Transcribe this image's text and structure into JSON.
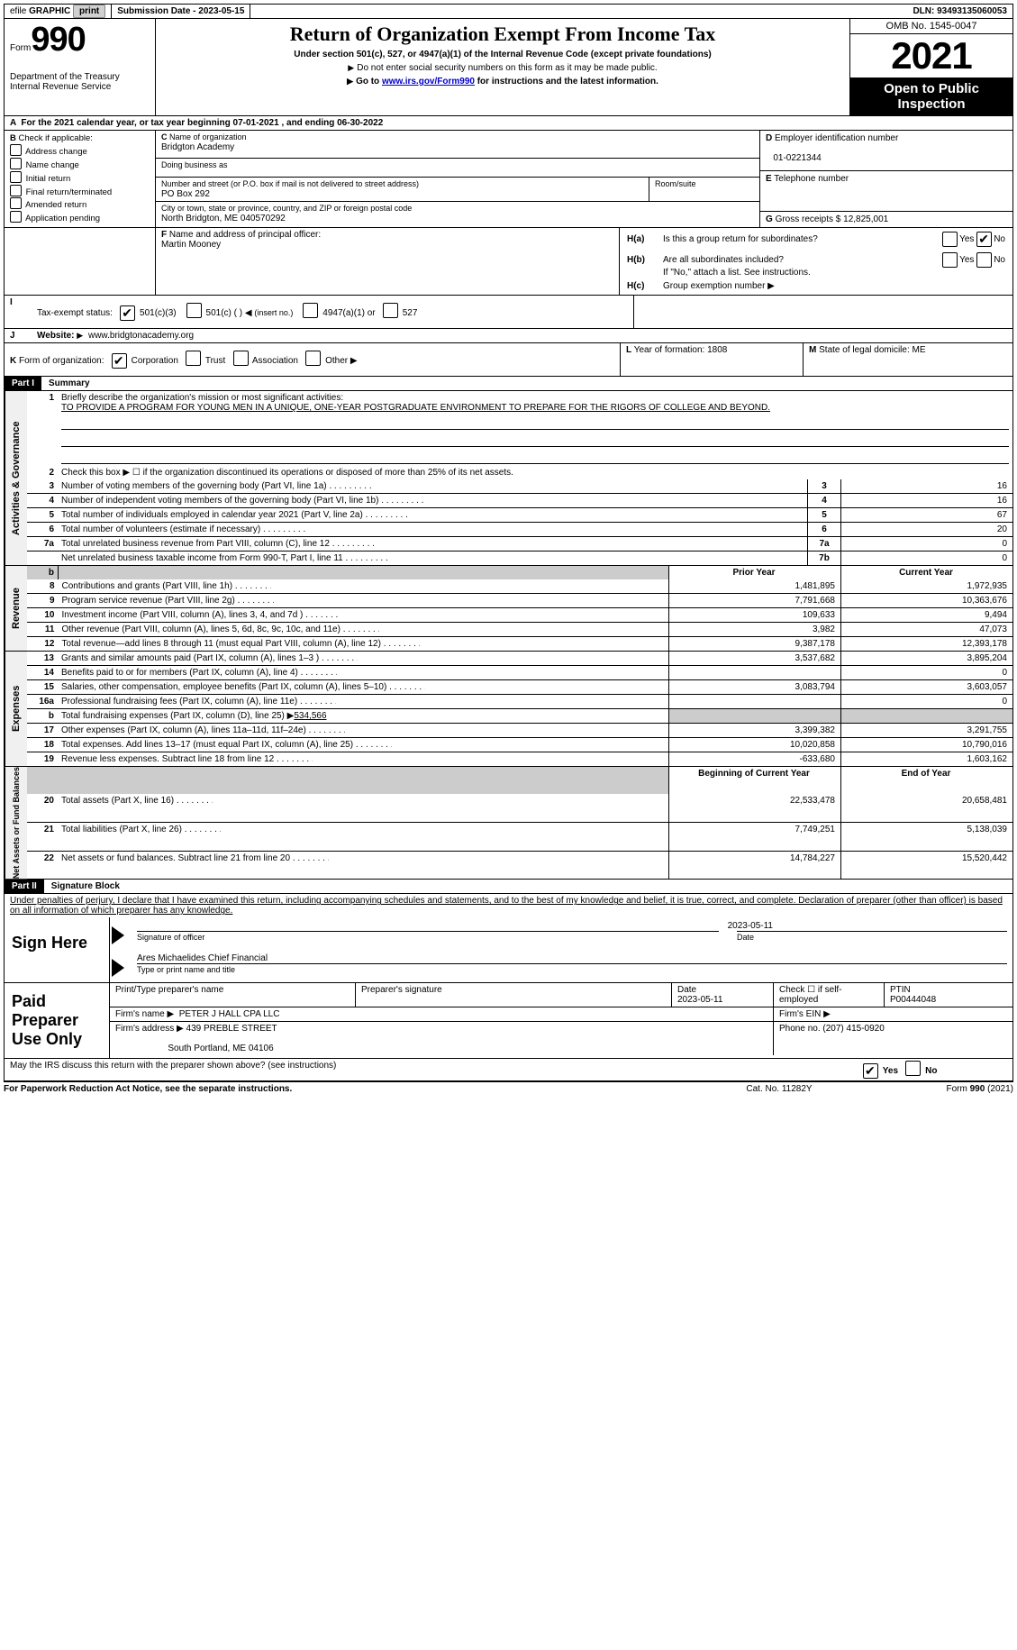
{
  "top": {
    "efile_prefix": "efile",
    "efile_graphic": "GRAPHIC",
    "print": "print",
    "submission_label": "Submission Date - ",
    "submission_date": "2023-05-15",
    "dln_label": "DLN: ",
    "dln": "93493135060053"
  },
  "header": {
    "form_label": "Form",
    "form_number": "990",
    "dept": "Department of the Treasury",
    "irs": "Internal Revenue Service",
    "title": "Return of Organization Exempt From Income Tax",
    "subtitle": "Under section 501(c), 527, or 4947(a)(1) of the Internal Revenue Code (except private foundations)",
    "note1": "Do not enter social security numbers on this form as it may be made public.",
    "note2_pre": "Go to ",
    "note2_link": "www.irs.gov/Form990",
    "note2_post": " for instructions and the latest information.",
    "omb": "OMB No. 1545-0047",
    "year": "2021",
    "open": "Open to Public Inspection"
  },
  "line_a": "For the 2021 calendar year, or tax year beginning 07-01-2021    , and ending 06-30-2022",
  "box_b": {
    "label": "Check if applicable:",
    "items": [
      "Address change",
      "Name change",
      "Initial return",
      "Final return/terminated",
      "Amended return",
      "Application pending"
    ]
  },
  "box_c": {
    "name_label": "Name of organization",
    "name": "Bridgton Academy",
    "dba_label": "Doing business as",
    "street_label": "Number and street (or P.O. box if mail is not delivered to street address)",
    "room_label": "Room/suite",
    "street": "PO Box 292",
    "city_label": "City or town, state or province, country, and ZIP or foreign postal code",
    "city": "North Bridgton, ME   040570292"
  },
  "box_d": {
    "label": "Employer identification number",
    "value": "01-0221344"
  },
  "box_e": {
    "label": "Telephone number"
  },
  "box_g": {
    "label": "Gross receipts $",
    "value": "12,825,001"
  },
  "box_f": {
    "label": "Name and address of principal officer:",
    "name": "Martin Mooney"
  },
  "box_h": {
    "a_label": "Is this a group return for subordinates?",
    "b_label": "Are all subordinates included?",
    "b_note": "If \"No,\" attach a list. See instructions.",
    "c_label": "Group exemption number",
    "yes": "Yes",
    "no": "No"
  },
  "line_i": {
    "label": "Tax-exempt status:",
    "o1": "501(c)(3)",
    "o2": "501(c) (   )",
    "o2s": "(insert no.)",
    "o3": "4947(a)(1) or",
    "o4": "527"
  },
  "line_j": {
    "label": "Website:",
    "value": "www.bridgtonacademy.org"
  },
  "line_k": {
    "label": "Form of organization:",
    "o1": "Corporation",
    "o2": "Trust",
    "o3": "Association",
    "o4": "Other"
  },
  "line_l": {
    "label": "Year of formation:",
    "value": "1808"
  },
  "line_m": {
    "label": "State of legal domicile:",
    "value": "ME"
  },
  "part1": {
    "label": "Part I",
    "title": "Summary",
    "mission_label": "Briefly describe the organization's mission or most significant activities:",
    "mission": "TO PROVIDE A PROGRAM FOR YOUNG MEN IN A UNIQUE, ONE-YEAR POSTGRADUATE ENVIRONMENT TO PREPARE FOR THE RIGORS OF COLLEGE AND BEYOND.",
    "line2": "Check this box ▶ ☐  if the organization discontinued its operations or disposed of more than 25% of its net assets.",
    "prior_year": "Prior Year",
    "current_year": "Current Year",
    "begin_year": "Beginning of Current Year",
    "end_year": "End of Year",
    "fund_exp_label": "Total fundraising expenses (Part IX, column (D), line 25) ▶",
    "fund_exp": "534,566"
  },
  "summary_top": [
    {
      "n": "3",
      "t": "Number of voting members of the governing body (Part VI, line 1a)",
      "ln": "3",
      "v": "16"
    },
    {
      "n": "4",
      "t": "Number of independent voting members of the governing body (Part VI, line 1b)",
      "ln": "4",
      "v": "16"
    },
    {
      "n": "5",
      "t": "Total number of individuals employed in calendar year 2021 (Part V, line 2a)",
      "ln": "5",
      "v": "67"
    },
    {
      "n": "6",
      "t": "Total number of volunteers (estimate if necessary)",
      "ln": "6",
      "v": "20"
    },
    {
      "n": "7a",
      "t": "Total unrelated business revenue from Part VIII, column (C), line 12",
      "ln": "7a",
      "v": "0"
    },
    {
      "n": "",
      "t": "Net unrelated business taxable income from Form 990-T, Part I, line 11",
      "ln": "7b",
      "v": "0"
    }
  ],
  "revenue": [
    {
      "n": "8",
      "t": "Contributions and grants (Part VIII, line 1h)",
      "p": "1,481,895",
      "c": "1,972,935"
    },
    {
      "n": "9",
      "t": "Program service revenue (Part VIII, line 2g)",
      "p": "7,791,668",
      "c": "10,363,676"
    },
    {
      "n": "10",
      "t": "Investment income (Part VIII, column (A), lines 3, 4, and 7d )",
      "p": "109,633",
      "c": "9,494"
    },
    {
      "n": "11",
      "t": "Other revenue (Part VIII, column (A), lines 5, 6d, 8c, 9c, 10c, and 11e)",
      "p": "3,982",
      "c": "47,073"
    },
    {
      "n": "12",
      "t": "Total revenue—add lines 8 through 11 (must equal Part VIII, column (A), line 12)",
      "p": "9,387,178",
      "c": "12,393,178"
    }
  ],
  "expenses": [
    {
      "n": "13",
      "t": "Grants and similar amounts paid (Part IX, column (A), lines 1–3 )",
      "p": "3,537,682",
      "c": "3,895,204"
    },
    {
      "n": "14",
      "t": "Benefits paid to or for members (Part IX, column (A), line 4)",
      "p": "",
      "c": "0"
    },
    {
      "n": "15",
      "t": "Salaries, other compensation, employee benefits (Part IX, column (A), lines 5–10)",
      "p": "3,083,794",
      "c": "3,603,057"
    },
    {
      "n": "16a",
      "t": "Professional fundraising fees (Part IX, column (A), line 11e)",
      "p": "",
      "c": "0"
    },
    {
      "n": "17",
      "t": "Other expenses (Part IX, column (A), lines 11a–11d, 11f–24e)",
      "p": "3,399,382",
      "c": "3,291,755"
    },
    {
      "n": "18",
      "t": "Total expenses. Add lines 13–17 (must equal Part IX, column (A), line 25)",
      "p": "10,020,858",
      "c": "10,790,016"
    },
    {
      "n": "19",
      "t": "Revenue less expenses. Subtract line 18 from line 12",
      "p": "-633,680",
      "c": "1,603,162"
    }
  ],
  "netassets": [
    {
      "n": "20",
      "t": "Total assets (Part X, line 16)",
      "p": "22,533,478",
      "c": "20,658,481"
    },
    {
      "n": "21",
      "t": "Total liabilities (Part X, line 26)",
      "p": "7,749,251",
      "c": "5,138,039"
    },
    {
      "n": "22",
      "t": "Net assets or fund balances. Subtract line 21 from line 20",
      "p": "14,784,227",
      "c": "15,520,442"
    }
  ],
  "part2": {
    "label": "Part II",
    "title": "Signature Block",
    "perjury": "Under penalties of perjury, I declare that I have examined this return, including accompanying schedules and statements, and to the best of my knowledge and belief, it is true, correct, and complete. Declaration of preparer (other than officer) is based on all information of which preparer has any knowledge.",
    "sign_here": "Sign Here",
    "sig_officer": "Signature of officer",
    "sig_date": "2023-05-11",
    "date_label": "Date",
    "typed_name": "Ares Michaelides  Chief Financial",
    "typed_label": "Type or print name and title"
  },
  "prep": {
    "label": "Paid Preparer Use Only",
    "print_name_label": "Print/Type preparer's name",
    "sig_label": "Preparer's signature",
    "date_label": "Date",
    "date": "2023-05-11",
    "self_emp": "Check ☐ if self-employed",
    "ptin_label": "PTIN",
    "ptin": "P00444048",
    "firm_name_label": "Firm's name    ▶",
    "firm_name": "PETER J HALL CPA LLC",
    "firm_ein_label": "Firm's EIN ▶",
    "firm_addr_label": "Firm's address ▶",
    "firm_addr1": "439 PREBLE STREET",
    "firm_addr2": "South Portland, ME  04106",
    "phone_label": "Phone no.",
    "phone": "(207) 415-0920"
  },
  "discuss": "May the IRS discuss this return with the preparer shown above? (see instructions)",
  "footer": {
    "pra": "For Paperwork Reduction Act Notice, see the separate instructions.",
    "cat": "Cat. No. 11282Y",
    "form": "Form 990 (2021)"
  }
}
